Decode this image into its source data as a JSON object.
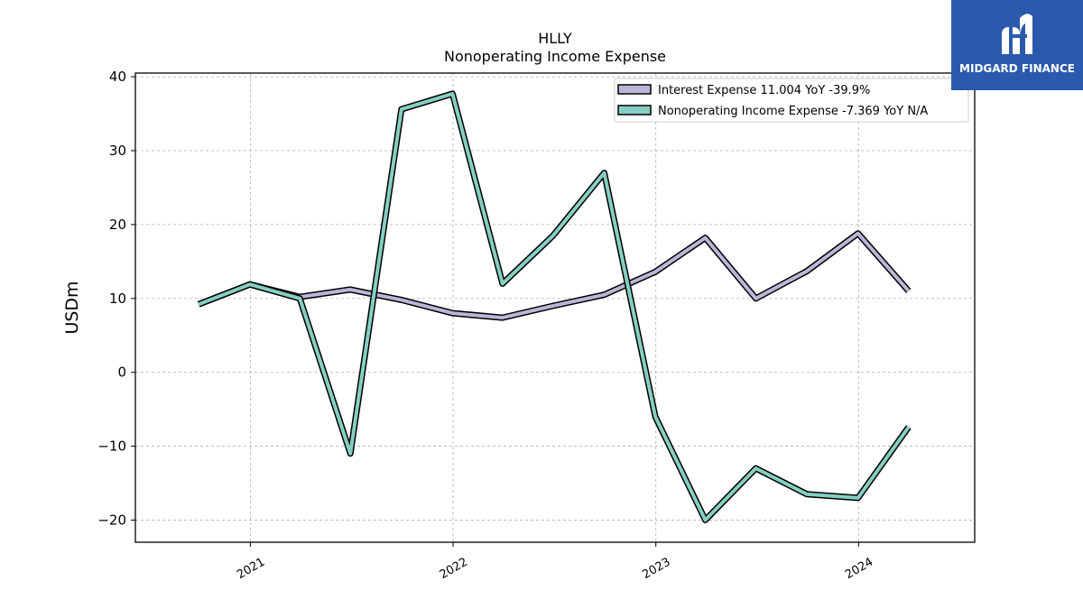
{
  "brand": {
    "name": "MIDGARD FINANCE",
    "color": "#2b5aad"
  },
  "chart_data": {
    "type": "line",
    "title": "HLLY",
    "subtitle": "Nonoperating Income Expense",
    "ylabel": "USDm",
    "xlabel": "",
    "ylim": [
      -23,
      40.5
    ],
    "xlim": [
      "2020-06-08",
      "2024-07-28"
    ],
    "yticks": [
      -20,
      -10,
      0,
      10,
      20,
      30,
      40
    ],
    "xticks": [
      "2021",
      "2022",
      "2023",
      "2024"
    ],
    "grid": true,
    "legend_position": "top-right",
    "x": [
      "2020-09-30",
      "2020-12-31",
      "2021-03-31",
      "2021-06-30",
      "2021-09-30",
      "2021-12-31",
      "2022-03-31",
      "2022-06-30",
      "2022-09-30",
      "2022-12-31",
      "2023-03-31",
      "2023-06-30",
      "2023-09-30",
      "2023-12-31",
      "2024-03-31"
    ],
    "series": [
      {
        "name": "Interest Expense",
        "legend_label": "Interest Expense  11.004 YoY -39.9%",
        "color": "#bcb5d8",
        "values": [
          9.2,
          11.9,
          10.2,
          11.2,
          9.8,
          8.0,
          7.4,
          9.0,
          10.5,
          13.6,
          18.2,
          10.0,
          13.7,
          18.8,
          11.0
        ]
      },
      {
        "name": "Nonoperating Income Expense",
        "legend_label": "Nonoperating Income Expense  -7.369 YoY N/A",
        "color": "#86cfc0",
        "values": [
          9.2,
          11.9,
          10.0,
          -11.0,
          35.6,
          37.7,
          12.0,
          18.5,
          27.0,
          -6.0,
          -20.0,
          -13.0,
          -16.5,
          -17.0,
          -7.4
        ]
      }
    ]
  }
}
